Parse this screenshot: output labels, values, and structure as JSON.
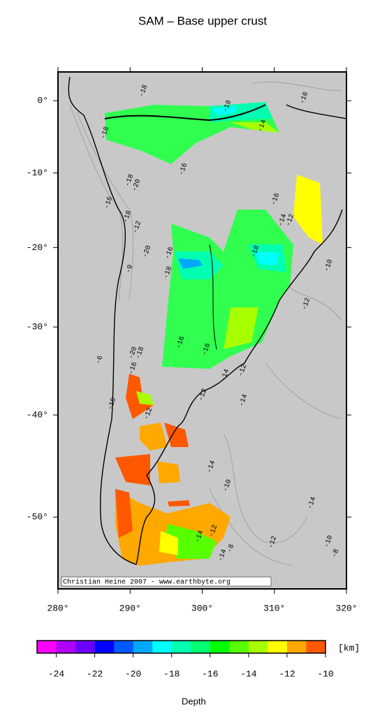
{
  "map": {
    "title": "SAM – Base upper crust",
    "xlim": [
      280,
      320
    ],
    "ylim": [
      -56,
      4
    ],
    "xticks": [
      {
        "value": 280,
        "label": "280°"
      },
      {
        "value": 290,
        "label": "290°"
      },
      {
        "value": 300,
        "label": "300°"
      },
      {
        "value": 310,
        "label": "310°"
      },
      {
        "value": 320,
        "label": "320°"
      }
    ],
    "yticks": [
      {
        "value": 0,
        "label": "0°"
      },
      {
        "value": -10,
        "label": "-10°"
      },
      {
        "value": -20,
        "label": "-20°"
      },
      {
        "value": -30,
        "label": "-30°"
      },
      {
        "value": -40,
        "label": "-40°"
      },
      {
        "value": -50,
        "label": "-50°"
      }
    ],
    "credit": "Christian Heine 2007 - www.earthbyte.org",
    "contour_labels": [
      "-18",
      "-18",
      "-16",
      "-14",
      "-16",
      "-18",
      "-20",
      "-16",
      "-18",
      "-18",
      "-12",
      "-20",
      "-16",
      "-18",
      "-16",
      "-14",
      "-12",
      "-18",
      "-16",
      "-16",
      "-14",
      "-12",
      "-14",
      "-10",
      "-12",
      "-12",
      "-14",
      "-10",
      "-14",
      "-12",
      "-8",
      "-12",
      "-10",
      "-8",
      "-14",
      "-14",
      "-12",
      "-20",
      "-18",
      "-16",
      "-10",
      "-9",
      "-6"
    ],
    "colorbar": {
      "lim": [
        -25,
        -10
      ],
      "ticks": [
        -24,
        -22,
        -20,
        -18,
        -16,
        -14,
        -12,
        -10
      ],
      "colors": [
        "#ff00ff",
        "#b000ff",
        "#6a00ff",
        "#0000ff",
        "#0058ff",
        "#00a8ff",
        "#00ffff",
        "#00ffb0",
        "#00ff70",
        "#00ff00",
        "#58ff00",
        "#a8ff00",
        "#ffff00",
        "#ffa800",
        "#ff5800"
      ],
      "unit": "[km]",
      "label": "Depth"
    }
  }
}
